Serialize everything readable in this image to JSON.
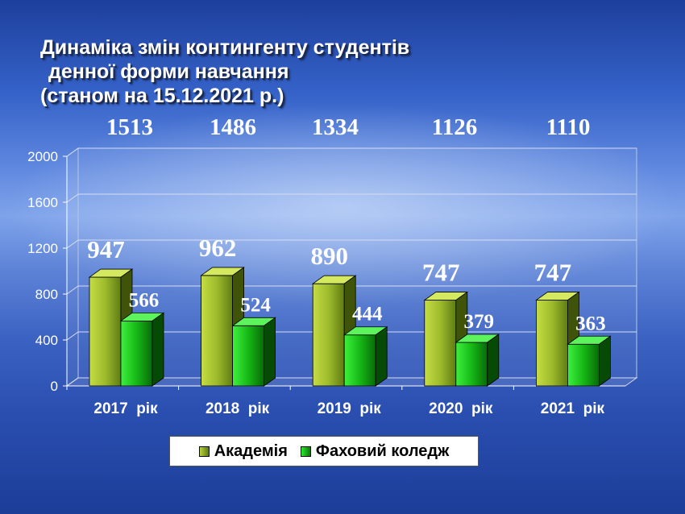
{
  "title": {
    "line1": "Динаміка змін контингенту студентів",
    "line2": "денної форми навчання",
    "line3": "(станом на 15.12.2021 р.)"
  },
  "chart_data": {
    "type": "bar",
    "categories": [
      "2017  рік",
      "2018  рік",
      "2019  рік",
      "2020  рік",
      "2021  рік"
    ],
    "series": [
      {
        "name": "Академія",
        "values": [
          947,
          962,
          890,
          747,
          747
        ],
        "color": "#8fb22a"
      },
      {
        "name": "Фаховий коледж",
        "values": [
          566,
          524,
          444,
          379,
          363
        ],
        "color": "#18c418"
      }
    ],
    "totals": [
      1513,
      1486,
      1334,
      1126,
      1110
    ],
    "ylim": [
      0,
      2000
    ],
    "yticks": [
      0,
      400,
      800,
      1200,
      1600,
      2000
    ],
    "grid": true,
    "legend_position": "bottom"
  },
  "legend": {
    "item0": "Академія",
    "item1": "Фаховий коледж"
  }
}
